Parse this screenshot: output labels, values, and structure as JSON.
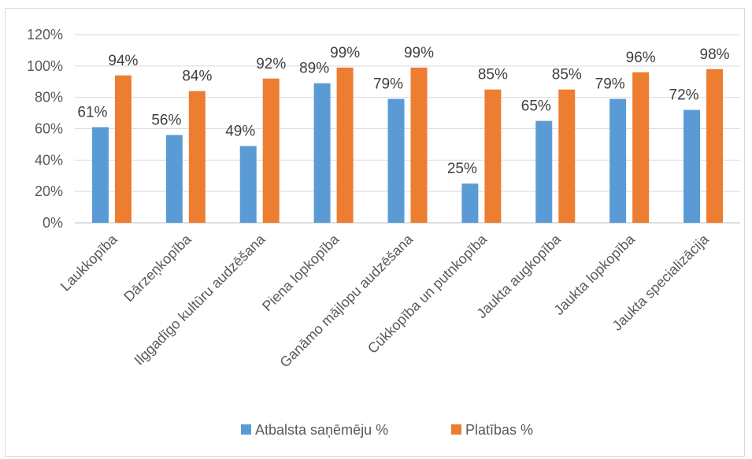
{
  "chart_data": {
    "type": "bar",
    "categories": [
      "Laukkopība",
      "Dārzeņkopība",
      "Ilggadīgo kultūru audzēšana",
      "Piena lopkopība",
      "Ganāmo mājlopu audzēšana",
      "Cūkkopība un putnkopība",
      "Jaukta augkopība",
      "Jaukta lopkopība",
      "Jaukta specializācija"
    ],
    "series": [
      {
        "name": "Atbalsta saņēmēju %",
        "color": "#5b9bd5",
        "values": [
          61,
          56,
          49,
          89,
          79,
          25,
          65,
          79,
          72
        ],
        "labels": [
          "61%",
          "56%",
          "49%",
          "89%",
          "79%",
          "25%",
          "65%",
          "79%",
          "72%"
        ]
      },
      {
        "name": "Platības %",
        "color": "#ed7d31",
        "values": [
          94,
          84,
          92,
          99,
          99,
          85,
          85,
          96,
          98
        ],
        "labels": [
          "94%",
          "84%",
          "92%",
          "99%",
          "99%",
          "85%",
          "85%",
          "96%",
          "98%"
        ]
      }
    ],
    "ylim": [
      0,
      120
    ],
    "yticks": [
      "0%",
      "20%",
      "40%",
      "60%",
      "80%",
      "100%",
      "120%"
    ],
    "grid": true,
    "legend": "bottom",
    "title": "",
    "xlabel": "",
    "ylabel": ""
  }
}
